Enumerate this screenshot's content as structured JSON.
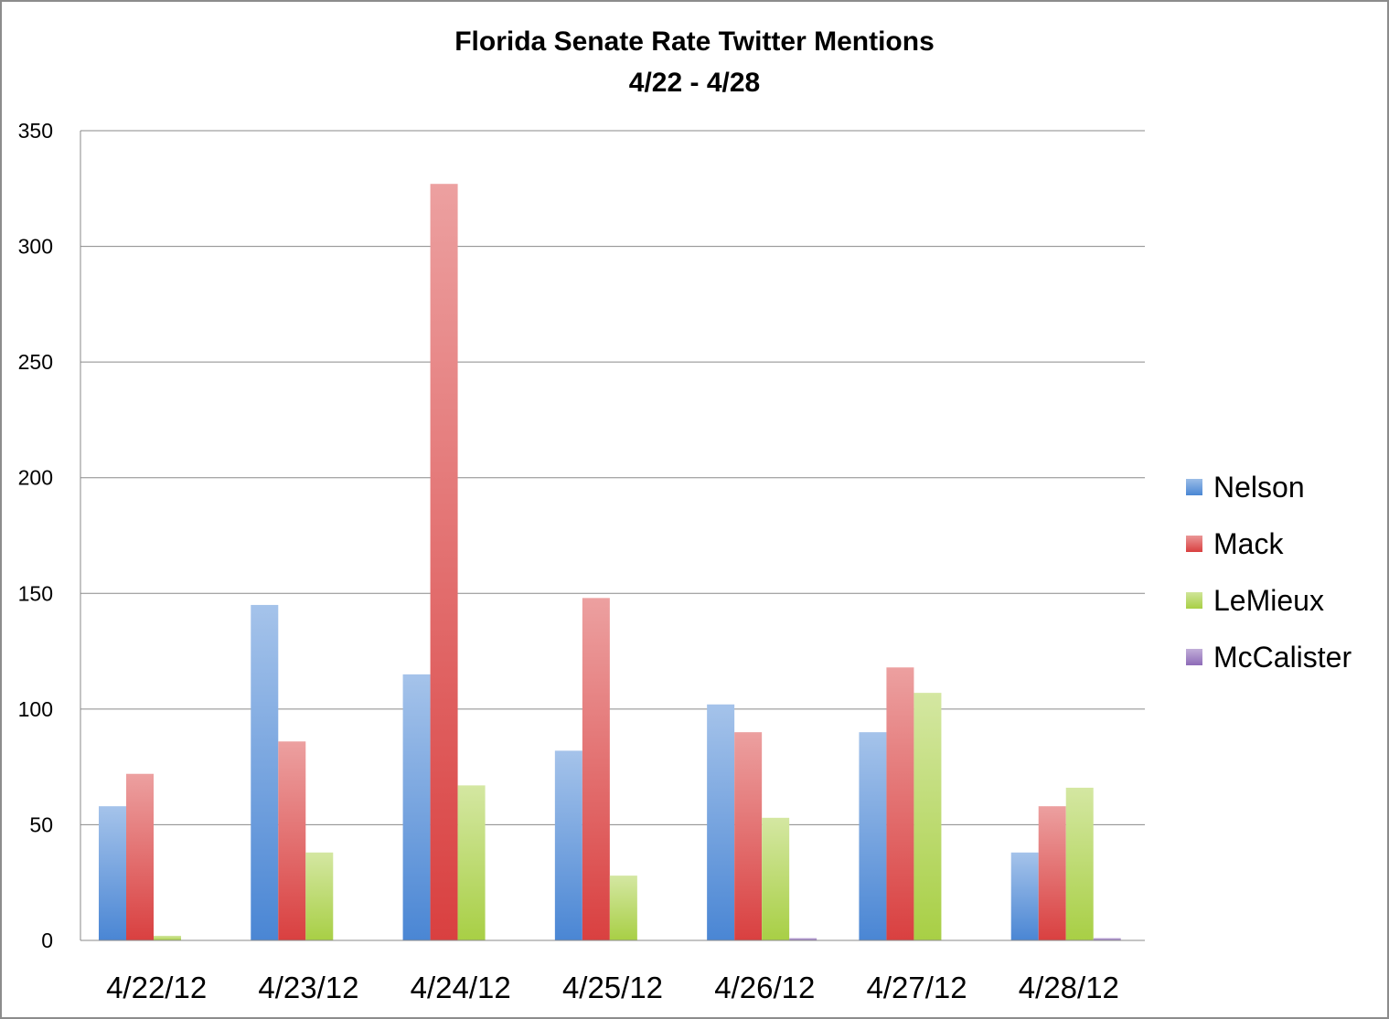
{
  "chart_data": {
    "type": "bar",
    "title": "Florida Senate Rate Twitter Mentions",
    "subtitle": "4/22 - 4/28",
    "xlabel": "",
    "ylabel": "",
    "ylim": [
      0,
      350
    ],
    "yticks": [
      0,
      50,
      100,
      150,
      200,
      250,
      300,
      350
    ],
    "grid": true,
    "legend_position": "right",
    "categories": [
      "4/22/12",
      "4/23/12",
      "4/24/12",
      "4/25/12",
      "4/26/12",
      "4/27/12",
      "4/28/12"
    ],
    "series": [
      {
        "name": "Nelson",
        "color": "#4a86d4",
        "values": [
          58,
          145,
          115,
          82,
          102,
          90,
          38
        ]
      },
      {
        "name": "Mack",
        "color": "#d94040",
        "values": [
          72,
          86,
          327,
          148,
          90,
          118,
          58
        ]
      },
      {
        "name": "LeMieux",
        "color": "#a8cf45",
        "values": [
          2,
          38,
          67,
          28,
          53,
          107,
          66
        ]
      },
      {
        "name": "McCalister",
        "color": "#8e6bb8",
        "values": [
          0,
          0,
          0,
          0,
          1,
          0,
          1
        ]
      }
    ]
  }
}
